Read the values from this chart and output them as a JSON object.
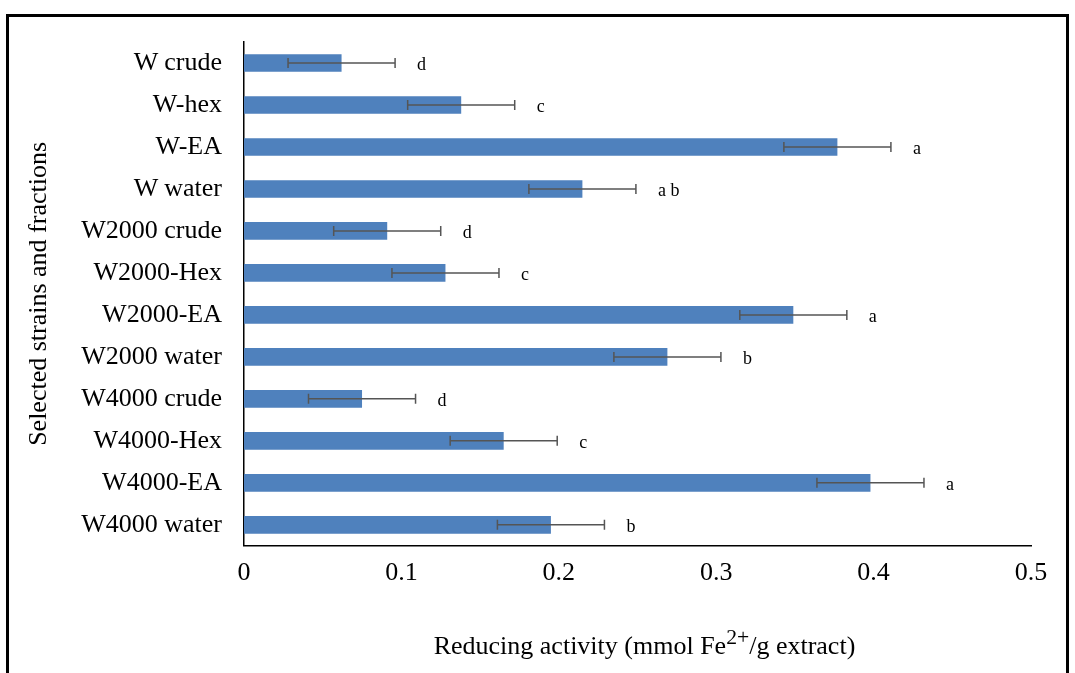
{
  "chart_data": {
    "type": "bar",
    "orientation": "horizontal",
    "xlabel": "Reducing activity (mmol Fe$^{2+}$/g extract)",
    "ylabel": "Selected strains and fractions",
    "categories": [
      "W crude",
      "W-hex",
      "W-EA",
      "W water",
      "W2000 crude",
      "W2000-Hex",
      "W2000-EA",
      "W2000 water",
      "W4000 crude",
      "W4000-Hex",
      "W4000-EA",
      "W4000 water"
    ],
    "values": [
      0.062,
      0.138,
      0.377,
      0.215,
      0.091,
      0.128,
      0.349,
      0.269,
      0.075,
      0.165,
      0.398,
      0.195
    ],
    "errors": [
      0.034,
      0.034,
      0.034,
      0.034,
      0.034,
      0.034,
      0.034,
      0.034,
      0.034,
      0.034,
      0.034,
      0.034
    ],
    "color": "#4f81bd",
    "xlim": [
      0,
      0.5
    ],
    "xticks": [
      0,
      0.1,
      0.2,
      0.3,
      0.4,
      0.5
    ],
    "grid": false,
    "legend": false,
    "annotations": [
      "d",
      "c",
      "a",
      "a b",
      "d",
      "c",
      "a",
      "b",
      "d",
      "c",
      "a",
      "b"
    ]
  }
}
